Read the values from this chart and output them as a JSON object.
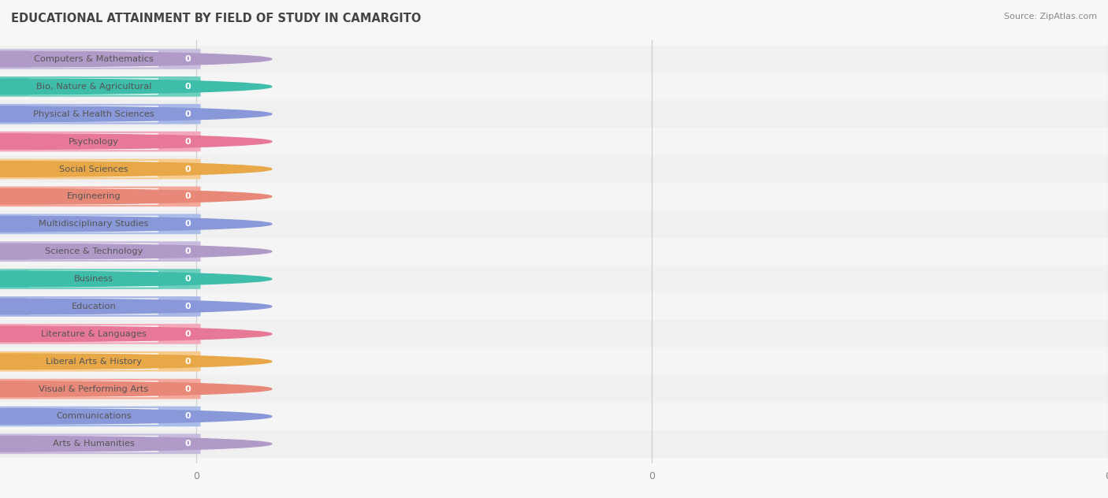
{
  "title": "EDUCATIONAL ATTAINMENT BY FIELD OF STUDY IN CAMARGITO",
  "source": "Source: ZipAtlas.com",
  "categories": [
    "Computers & Mathematics",
    "Bio, Nature & Agricultural",
    "Physical & Health Sciences",
    "Psychology",
    "Social Sciences",
    "Engineering",
    "Multidisciplinary Studies",
    "Science & Technology",
    "Business",
    "Education",
    "Literature & Languages",
    "Liberal Arts & History",
    "Visual & Performing Arts",
    "Communications",
    "Arts & Humanities"
  ],
  "values": [
    0,
    0,
    0,
    0,
    0,
    0,
    0,
    0,
    0,
    0,
    0,
    0,
    0,
    0,
    0
  ],
  "bar_colors": [
    "#c9bedd",
    "#6ecfbf",
    "#aab8e8",
    "#f4a8bc",
    "#f7ca8e",
    "#f4a89c",
    "#aabce8",
    "#c8badc",
    "#6ecfbf",
    "#aab8e8",
    "#f4a8bc",
    "#f7ca8e",
    "#f4a89c",
    "#aabce8",
    "#c8badc"
  ],
  "dot_colors": [
    "#b09ac8",
    "#3dbdaa",
    "#8898d8",
    "#e87898",
    "#e8a848",
    "#e88878",
    "#8898d8",
    "#b09ac8",
    "#3dbdaa",
    "#8898d8",
    "#e87898",
    "#e8a848",
    "#e88878",
    "#8898d8",
    "#b09ac8"
  ],
  "background_color": "#f7f7f7",
  "title_fontsize": 10.5,
  "source_fontsize": 8
}
